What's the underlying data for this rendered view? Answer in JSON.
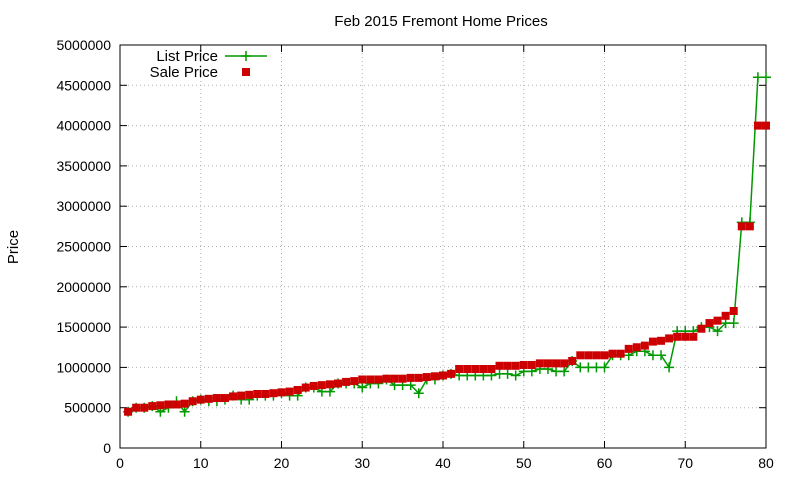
{
  "chart_data": {
    "type": "line",
    "title": "Feb 2015 Fremont Home Prices",
    "xlabel": "",
    "ylabel": "Price",
    "xlim": [
      0,
      80
    ],
    "ylim": [
      0,
      5000000
    ],
    "xticks": [
      0,
      10,
      20,
      30,
      40,
      50,
      60,
      70,
      80
    ],
    "yticks": [
      0,
      500000,
      1000000,
      1500000,
      2000000,
      2500000,
      3000000,
      3500000,
      4000000,
      4500000,
      5000000
    ],
    "grid": true,
    "legend_position": "top-left",
    "series": [
      {
        "name": "List Price",
        "color": "#009900",
        "marker": "plus",
        "style": "line",
        "x": [
          1,
          2,
          3,
          4,
          5,
          6,
          7,
          8,
          9,
          10,
          11,
          12,
          13,
          14,
          15,
          16,
          17,
          18,
          19,
          20,
          21,
          22,
          23,
          24,
          25,
          26,
          27,
          28,
          29,
          30,
          31,
          32,
          33,
          34,
          35,
          36,
          37,
          38,
          39,
          40,
          41,
          42,
          43,
          44,
          45,
          46,
          47,
          48,
          49,
          50,
          51,
          52,
          53,
          54,
          55,
          56,
          57,
          58,
          59,
          60,
          61,
          62,
          63,
          64,
          65,
          66,
          67,
          68,
          69,
          70,
          71,
          72,
          73,
          74,
          75,
          76,
          77,
          78,
          79,
          80
        ],
        "values": [
          450000,
          500000,
          500000,
          520000,
          450000,
          500000,
          580000,
          450000,
          580000,
          600000,
          580000,
          580000,
          600000,
          650000,
          600000,
          600000,
          650000,
          650000,
          650000,
          680000,
          650000,
          650000,
          750000,
          750000,
          700000,
          700000,
          800000,
          800000,
          800000,
          750000,
          800000,
          800000,
          850000,
          780000,
          780000,
          780000,
          680000,
          850000,
          850000,
          900000,
          920000,
          900000,
          900000,
          900000,
          900000,
          900000,
          920000,
          920000,
          900000,
          950000,
          950000,
          980000,
          980000,
          950000,
          950000,
          1080000,
          1000000,
          1000000,
          1000000,
          1000000,
          1150000,
          1150000,
          1150000,
          1200000,
          1200000,
          1150000,
          1150000,
          1000000,
          1450000,
          1450000,
          1450000,
          1500000,
          1500000,
          1450000,
          1550000,
          1550000,
          2800000,
          2800000,
          4600000,
          4600000
        ]
      },
      {
        "name": "Sale Price",
        "color": "#cc0000",
        "marker": "square",
        "style": "points",
        "x": [
          1,
          2,
          3,
          4,
          5,
          6,
          7,
          8,
          9,
          10,
          11,
          12,
          13,
          14,
          15,
          16,
          17,
          18,
          19,
          20,
          21,
          22,
          23,
          24,
          25,
          26,
          27,
          28,
          29,
          30,
          31,
          32,
          33,
          34,
          35,
          36,
          37,
          38,
          39,
          40,
          41,
          42,
          43,
          44,
          45,
          46,
          47,
          48,
          49,
          50,
          51,
          52,
          53,
          54,
          55,
          56,
          57,
          58,
          59,
          60,
          61,
          62,
          63,
          64,
          65,
          66,
          67,
          68,
          69,
          70,
          71,
          72,
          73,
          74,
          75,
          76,
          77,
          78,
          79,
          80
        ],
        "values": [
          450000,
          500000,
          500000,
          520000,
          530000,
          540000,
          540000,
          550000,
          580000,
          600000,
          610000,
          620000,
          620000,
          640000,
          650000,
          660000,
          670000,
          670000,
          680000,
          690000,
          700000,
          720000,
          750000,
          770000,
          780000,
          790000,
          800000,
          820000,
          830000,
          850000,
          850000,
          850000,
          860000,
          860000,
          860000,
          870000,
          870000,
          880000,
          890000,
          900000,
          920000,
          980000,
          980000,
          980000,
          980000,
          980000,
          1020000,
          1020000,
          1020000,
          1030000,
          1030000,
          1050000,
          1050000,
          1050000,
          1050000,
          1080000,
          1150000,
          1150000,
          1150000,
          1150000,
          1170000,
          1170000,
          1230000,
          1250000,
          1270000,
          1320000,
          1330000,
          1360000,
          1380000,
          1380000,
          1380000,
          1480000,
          1550000,
          1580000,
          1640000,
          1700000,
          2750000,
          2750000,
          4000000,
          4000000
        ]
      }
    ]
  }
}
